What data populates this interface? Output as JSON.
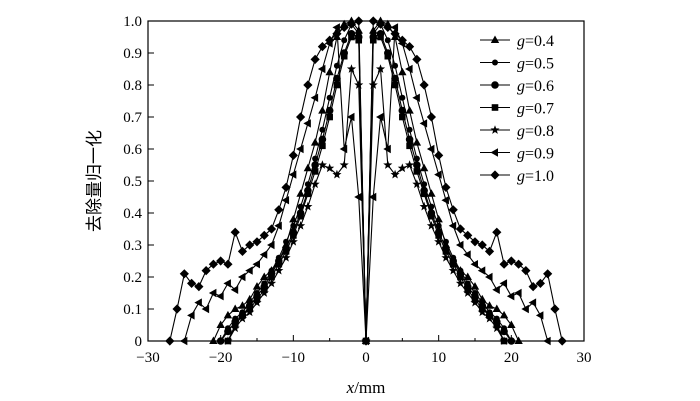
{
  "chart_data": {
    "type": "line",
    "title": "",
    "xlabel": "x/mm",
    "xlabel_var": "x",
    "xlabel_unit": "/mm",
    "ylabel": "去除量归一化",
    "xlim": [
      -30,
      30
    ],
    "ylim": [
      0,
      1.0
    ],
    "xticks": [
      -30,
      -20,
      -10,
      0,
      10,
      20,
      30
    ],
    "xtick_labels": [
      "−30",
      "−20",
      "−10",
      "0",
      "10",
      "20",
      "30"
    ],
    "yticks": [
      0,
      0.1,
      0.2,
      0.3,
      0.4,
      0.5,
      0.6,
      0.7,
      0.8,
      0.9,
      1.0
    ],
    "ytick_labels": [
      "0",
      "0.1",
      "0.2",
      "0.3",
      "0.4",
      "0.5",
      "0.6",
      "0.7",
      "0.8",
      "0.9",
      "1.0"
    ],
    "grid": false,
    "legend_position": "top-right",
    "series": [
      {
        "name": "g=0.4",
        "var": "g",
        "val": "=0.4",
        "marker": "triangle-up",
        "x": [
          -21,
          -20,
          -19,
          -18,
          -17,
          -16,
          -15,
          -14,
          -13,
          -12,
          -11,
          -10,
          -9,
          -8,
          -7,
          -6,
          -5,
          -4,
          -3,
          -2,
          -1,
          0,
          1,
          2,
          3,
          4,
          5,
          6,
          7,
          8,
          9,
          10,
          11,
          12,
          13,
          14,
          15,
          16,
          17,
          18,
          19,
          20,
          21
        ],
        "y": [
          0,
          0.05,
          0.08,
          0.1,
          0.11,
          0.13,
          0.17,
          0.2,
          0.22,
          0.25,
          0.3,
          0.38,
          0.46,
          0.54,
          0.62,
          0.72,
          0.84,
          0.95,
          0.99,
          1.0,
          0.97,
          0,
          0.97,
          1.0,
          0.99,
          0.95,
          0.84,
          0.72,
          0.62,
          0.54,
          0.46,
          0.38,
          0.3,
          0.25,
          0.22,
          0.2,
          0.17,
          0.13,
          0.11,
          0.1,
          0.08,
          0.05,
          0
        ]
      },
      {
        "name": "g=0.5",
        "var": "g",
        "val": "=0.5",
        "marker": "circle-small",
        "x": [
          -20,
          -19,
          -18,
          -17,
          -16,
          -15,
          -14,
          -13,
          -12,
          -11,
          -10,
          -9,
          -8,
          -7,
          -6,
          -5,
          -4,
          -3,
          -2,
          -1,
          0,
          1,
          2,
          3,
          4,
          5,
          6,
          7,
          8,
          9,
          10,
          11,
          12,
          13,
          14,
          15,
          16,
          17,
          18,
          19,
          20
        ],
        "y": [
          0,
          0.04,
          0.07,
          0.09,
          0.12,
          0.15,
          0.18,
          0.22,
          0.26,
          0.31,
          0.36,
          0.42,
          0.49,
          0.57,
          0.66,
          0.76,
          0.86,
          0.94,
          0.99,
          0.96,
          0,
          0.96,
          0.99,
          0.94,
          0.86,
          0.76,
          0.66,
          0.57,
          0.49,
          0.42,
          0.36,
          0.31,
          0.26,
          0.22,
          0.18,
          0.15,
          0.12,
          0.09,
          0.07,
          0.04,
          0
        ]
      },
      {
        "name": "g=0.6",
        "var": "g",
        "val": "=0.6",
        "marker": "circle",
        "x": [
          -20,
          -19,
          -18,
          -17,
          -16,
          -15,
          -14,
          -13,
          -12,
          -11,
          -10,
          -9,
          -8,
          -7,
          -6,
          -5,
          -4,
          -3,
          -2,
          -1,
          0,
          1,
          2,
          3,
          4,
          5,
          6,
          7,
          8,
          9,
          10,
          11,
          12,
          13,
          14,
          15,
          16,
          17,
          18,
          19,
          20
        ],
        "y": [
          0,
          0.03,
          0.06,
          0.08,
          0.11,
          0.14,
          0.17,
          0.21,
          0.25,
          0.29,
          0.34,
          0.4,
          0.47,
          0.55,
          0.63,
          0.72,
          0.82,
          0.9,
          0.96,
          0.95,
          0,
          0.95,
          0.96,
          0.9,
          0.82,
          0.72,
          0.63,
          0.55,
          0.47,
          0.4,
          0.34,
          0.29,
          0.25,
          0.21,
          0.17,
          0.14,
          0.11,
          0.08,
          0.06,
          0.03,
          0
        ]
      },
      {
        "name": "g=0.7",
        "var": "g",
        "val": "=0.7",
        "marker": "square",
        "x": [
          -19,
          -18,
          -17,
          -16,
          -15,
          -14,
          -13,
          -12,
          -11,
          -10,
          -9,
          -8,
          -7,
          -6,
          -5,
          -4,
          -3,
          -2,
          -1,
          0,
          1,
          2,
          3,
          4,
          5,
          6,
          7,
          8,
          9,
          10,
          11,
          12,
          13,
          14,
          15,
          16,
          17,
          18,
          19
        ],
        "y": [
          0,
          0.05,
          0.08,
          0.1,
          0.13,
          0.16,
          0.2,
          0.24,
          0.28,
          0.33,
          0.39,
          0.46,
          0.53,
          0.61,
          0.7,
          0.8,
          0.89,
          0.95,
          0.94,
          0,
          0.94,
          0.95,
          0.89,
          0.8,
          0.7,
          0.61,
          0.53,
          0.46,
          0.39,
          0.33,
          0.28,
          0.24,
          0.2,
          0.16,
          0.13,
          0.1,
          0.08,
          0.05,
          0
        ]
      },
      {
        "name": "g=0.8",
        "var": "g",
        "val": "=0.8",
        "marker": "star",
        "x": [
          -19,
          -18,
          -17,
          -16,
          -15,
          -14,
          -13,
          -12,
          -11,
          -10,
          -9,
          -8,
          -7,
          -6,
          -5,
          -4,
          -3,
          -2,
          -1,
          0,
          1,
          2,
          3,
          4,
          5,
          6,
          7,
          8,
          9,
          10,
          11,
          12,
          13,
          14,
          15,
          16,
          17,
          18,
          19
        ],
        "y": [
          0,
          0.04,
          0.07,
          0.09,
          0.12,
          0.15,
          0.18,
          0.22,
          0.26,
          0.31,
          0.36,
          0.42,
          0.49,
          0.55,
          0.54,
          0.52,
          0.55,
          0.85,
          0.8,
          0,
          0.8,
          0.85,
          0.55,
          0.52,
          0.54,
          0.55,
          0.49,
          0.42,
          0.36,
          0.31,
          0.26,
          0.22,
          0.18,
          0.15,
          0.12,
          0.09,
          0.07,
          0.04,
          0
        ]
      },
      {
        "name": "g=0.9",
        "var": "g",
        "val": "=0.9",
        "marker": "triangle-left",
        "x": [
          -25,
          -24,
          -23,
          -22,
          -21,
          -20,
          -19,
          -18,
          -17,
          -16,
          -15,
          -14,
          -13,
          -12,
          -11,
          -10,
          -9,
          -8,
          -7,
          -6,
          -5,
          -4,
          -3,
          -2,
          -1,
          0,
          1,
          2,
          3,
          4,
          5,
          6,
          7,
          8,
          9,
          10,
          11,
          12,
          13,
          14,
          15,
          16,
          17,
          18,
          19,
          20,
          21,
          22,
          23,
          24,
          25
        ],
        "y": [
          0,
          0.08,
          0.12,
          0.1,
          0.15,
          0.14,
          0.18,
          0.16,
          0.2,
          0.22,
          0.24,
          0.27,
          0.3,
          0.36,
          0.44,
          0.52,
          0.6,
          0.68,
          0.76,
          0.85,
          0.93,
          0.98,
          0.6,
          0.7,
          0.45,
          0,
          0.45,
          0.7,
          0.6,
          0.98,
          0.93,
          0.85,
          0.76,
          0.68,
          0.6,
          0.52,
          0.44,
          0.36,
          0.3,
          0.27,
          0.24,
          0.22,
          0.2,
          0.16,
          0.18,
          0.14,
          0.15,
          0.1,
          0.12,
          0.08,
          0
        ]
      },
      {
        "name": "g=1.0",
        "var": "g",
        "val": "=1.0",
        "marker": "diamond",
        "x": [
          -27,
          -26,
          -25,
          -24,
          -23,
          -22,
          -21,
          -20,
          -19,
          -18,
          -17,
          -16,
          -15,
          -14,
          -13,
          -12,
          -11,
          -10,
          -9,
          -8,
          -7,
          -6,
          -5,
          -4,
          -3,
          -2,
          -1,
          0,
          1,
          2,
          3,
          4,
          5,
          6,
          7,
          8,
          9,
          10,
          11,
          12,
          13,
          14,
          15,
          16,
          17,
          18,
          19,
          20,
          21,
          22,
          23,
          24,
          25,
          26,
          27
        ],
        "y": [
          0,
          0.1,
          0.21,
          0.18,
          0.17,
          0.22,
          0.24,
          0.25,
          0.24,
          0.34,
          0.28,
          0.3,
          0.31,
          0.33,
          0.35,
          0.41,
          0.48,
          0.58,
          0.7,
          0.8,
          0.88,
          0.92,
          0.94,
          0.96,
          0.98,
          0.99,
          1.0,
          0,
          1.0,
          0.99,
          0.98,
          0.96,
          0.94,
          0.92,
          0.88,
          0.8,
          0.7,
          0.58,
          0.48,
          0.41,
          0.35,
          0.33,
          0.31,
          0.3,
          0.28,
          0.34,
          0.24,
          0.25,
          0.24,
          0.22,
          0.17,
          0.18,
          0.21,
          0.1,
          0
        ]
      }
    ]
  }
}
